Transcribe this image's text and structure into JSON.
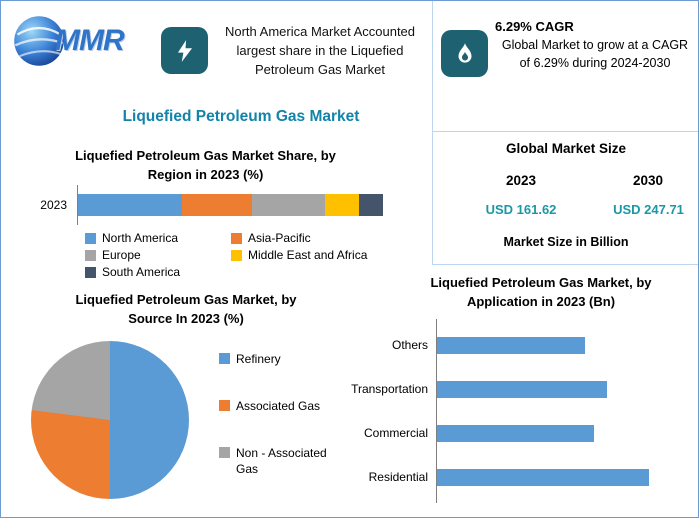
{
  "header": {
    "logo_text": "MMR",
    "highlight": {
      "icon": "lightning-icon",
      "text": "North America Market Accounted largest share in the Liquefied Petroleum Gas Market"
    },
    "cagr": {
      "icon": "flame-icon",
      "title": "6.29% CAGR",
      "text": "Global Market to grow at a CAGR of 6.29% during 2024-2030"
    }
  },
  "page_title": "Liquefied Petroleum Gas Market",
  "market_size": {
    "title": "Global Market Size",
    "year_left": "2023",
    "year_right": "2030",
    "value_left": "USD 161.62",
    "value_right": "USD 247.71",
    "note": "Market Size in Billion"
  },
  "colors": {
    "accent_teal": "#1e6272",
    "title_teal": "#1384a8",
    "value_teal": "#1a98a6",
    "bar_blue": "#5b9bd5",
    "orange": "#ed7d31",
    "gray": "#a5a5a5",
    "yellow": "#ffc000",
    "navy": "#44546a"
  },
  "chart_data": [
    {
      "type": "bar",
      "subtype": "stacked-horizontal",
      "title": "Liquefied Petroleum Gas Market Share, by Region in 2023 (%)",
      "categories": [
        "2023"
      ],
      "series": [
        {
          "name": "North America",
          "color": "#5b9bd5",
          "values": [
            34
          ]
        },
        {
          "name": "Asia-Pacific",
          "color": "#ed7d31",
          "values": [
            23
          ]
        },
        {
          "name": "Europe",
          "color": "#a5a5a5",
          "values": [
            24
          ]
        },
        {
          "name": "Middle East and Africa",
          "color": "#ffc000",
          "values": [
            11
          ]
        },
        {
          "name": "South America",
          "color": "#44546a",
          "values": [
            8
          ]
        }
      ],
      "xlim": [
        0,
        100
      ],
      "legend_position": "bottom"
    },
    {
      "type": "pie",
      "title": "Liquefied Petroleum Gas Market, by Source In 2023 (%)",
      "labels": [
        "Refinery",
        "Associated Gas",
        "Non - Associated Gas"
      ],
      "values": [
        50,
        27,
        23
      ],
      "colors": [
        "#5b9bd5",
        "#ed7d31",
        "#a5a5a5"
      ],
      "legend_position": "right"
    },
    {
      "type": "bar",
      "subtype": "horizontal",
      "title": "Liquefied Petroleum Gas Market, by Application in 2023 (Bn)",
      "categories": [
        "Others",
        "Transportation",
        "Commercial",
        "Residential"
      ],
      "values": [
        35,
        40,
        37,
        50
      ],
      "xlim": [
        0,
        52
      ],
      "color": "#5b9bd5"
    }
  ]
}
